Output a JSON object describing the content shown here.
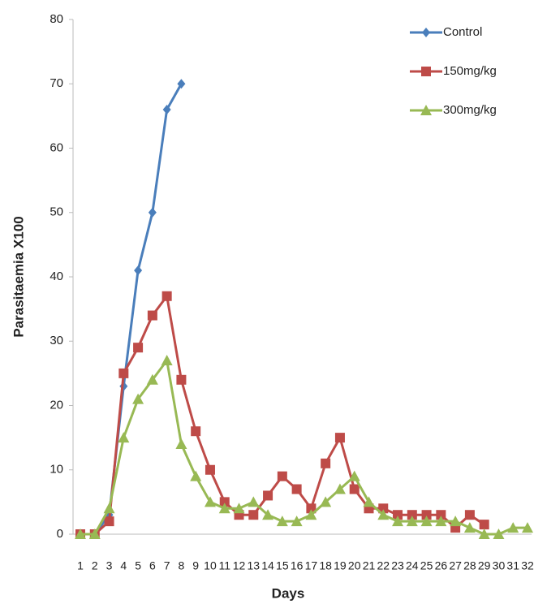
{
  "chart_data": {
    "type": "line",
    "x_label": "Days",
    "y_label": "Parasitaemia X100",
    "categories": [
      1,
      2,
      3,
      4,
      5,
      6,
      7,
      8,
      9,
      10,
      11,
      12,
      13,
      14,
      15,
      16,
      17,
      18,
      19,
      20,
      21,
      22,
      23,
      24,
      25,
      26,
      27,
      28,
      29,
      30,
      31,
      32
    ],
    "series": [
      {
        "name": "Control",
        "color": "#4a7ebb",
        "marker": "diamond",
        "values": [
          0,
          0,
          3,
          23,
          41,
          50,
          66,
          70,
          null,
          null,
          null,
          null,
          null,
          null,
          null,
          null,
          null,
          null,
          null,
          null,
          null,
          null,
          null,
          null,
          null,
          null,
          null,
          null,
          null,
          null,
          null,
          null
        ]
      },
      {
        "name": "150mg/kg",
        "color": "#be4b48",
        "marker": "square",
        "values": [
          0,
          0,
          2,
          25,
          29,
          34,
          37,
          24,
          16,
          10,
          5,
          3,
          3,
          6,
          9,
          7,
          4,
          11,
          15,
          7,
          4,
          4,
          3,
          3,
          3,
          3,
          1,
          3,
          1.5,
          null,
          null,
          null
        ]
      },
      {
        "name": "300mg/kg",
        "color": "#98b954",
        "marker": "triangle",
        "values": [
          0,
          0,
          4,
          15,
          21,
          24,
          27,
          14,
          9,
          5,
          4,
          4,
          5,
          3,
          2,
          2,
          3,
          5,
          7,
          9,
          5,
          3,
          2,
          2,
          2,
          2,
          2,
          1,
          0,
          0,
          1,
          1
        ]
      }
    ],
    "ylim": [
      0,
      80
    ],
    "yticks": [
      0,
      10,
      20,
      30,
      40,
      50,
      60,
      70,
      80
    ],
    "grid": false,
    "legend": "top-right"
  }
}
